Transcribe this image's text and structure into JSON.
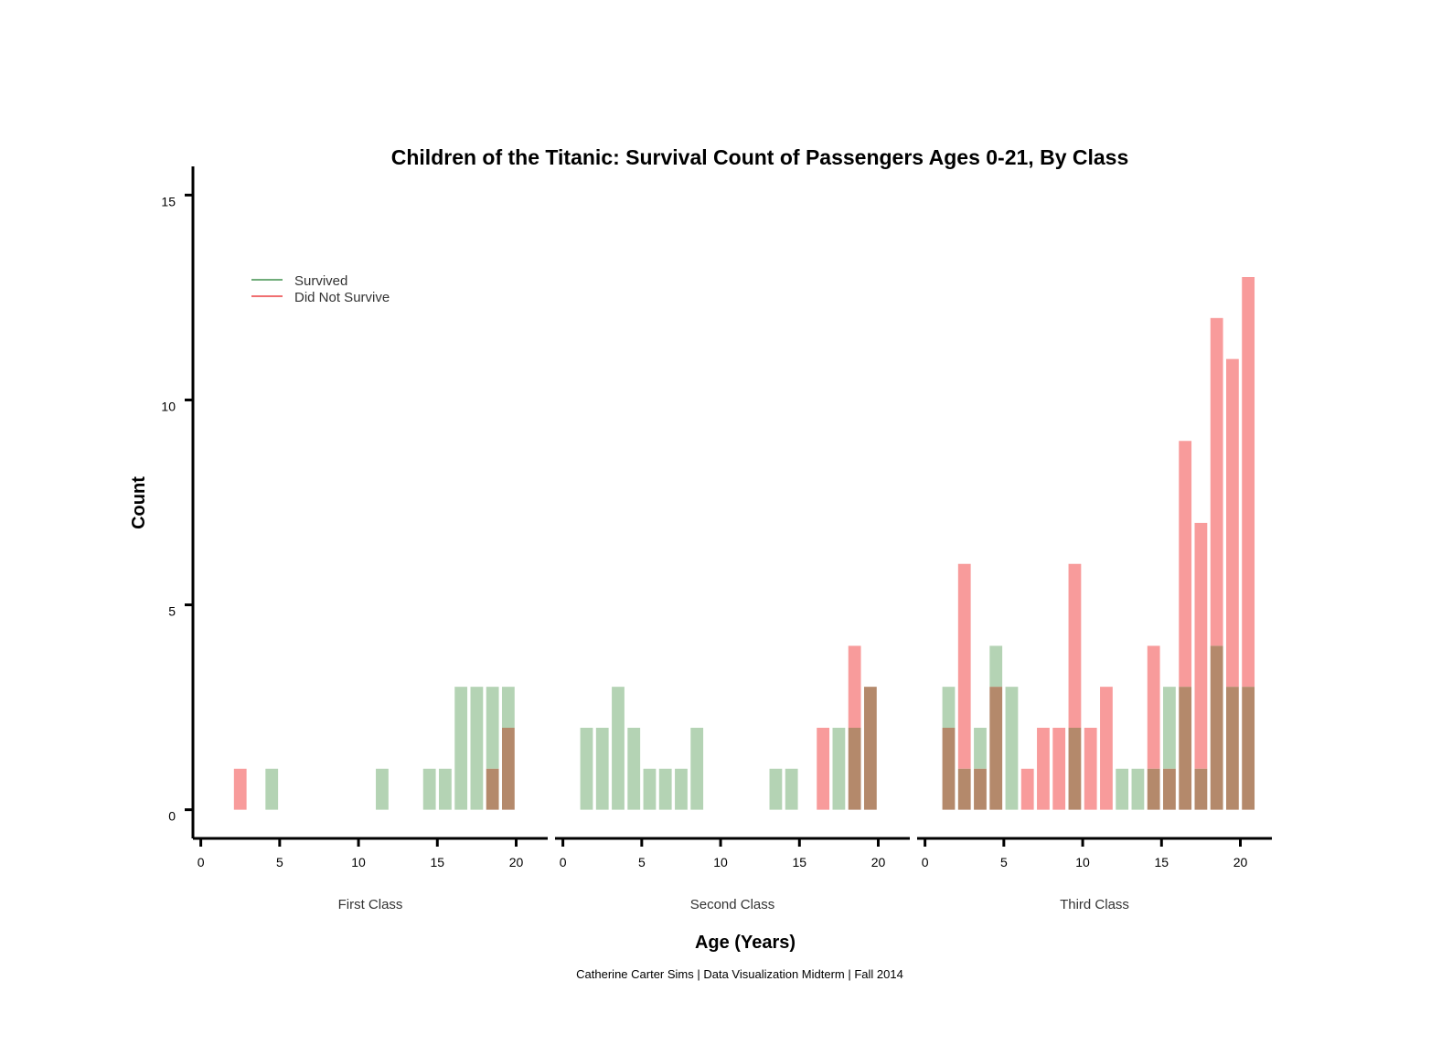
{
  "chart_data": {
    "type": "bar",
    "title": "Children of the Titanic: Survival Count of Passengers Ages 0-21, By Class",
    "xlabel": "Age (Years)",
    "ylabel": "Count",
    "caption": "Catherine Carter Sims | Data Visualization Midterm | Fall 2014",
    "ylim": [
      -0.7,
      15.7
    ],
    "yticks": [
      0,
      5,
      10,
      15
    ],
    "xlim": [
      -0.5,
      22
    ],
    "xticks": [
      0,
      5,
      10,
      15,
      20
    ],
    "legend": {
      "position": "top-left",
      "entries": [
        {
          "label": "Survived",
          "color": "#1a7a2a"
        },
        {
          "label": "Did Not Survive",
          "color": "#e8191c"
        }
      ]
    },
    "colors": {
      "survived_fill": "#b4d3b4",
      "died_fill": "#f89b9b",
      "overlap_fill": "#b4896b",
      "axis": "#000000"
    },
    "panels": [
      {
        "label": "First Class",
        "survived": [
          [
            4.5,
            1
          ],
          [
            11.5,
            1
          ],
          [
            14.5,
            1
          ],
          [
            15.5,
            1
          ],
          [
            16.5,
            3
          ],
          [
            17.5,
            3
          ],
          [
            18.5,
            3
          ],
          [
            19.5,
            3
          ]
        ],
        "died": [
          [
            2.5,
            1
          ],
          [
            18.5,
            1
          ],
          [
            19.5,
            2
          ]
        ]
      },
      {
        "label": "Second Class",
        "survived": [
          [
            1.5,
            2
          ],
          [
            2.5,
            2
          ],
          [
            3.5,
            3
          ],
          [
            4.5,
            2
          ],
          [
            5.5,
            1
          ],
          [
            6.5,
            1
          ],
          [
            7.5,
            1
          ],
          [
            8.5,
            2
          ],
          [
            13.5,
            1
          ],
          [
            14.5,
            1
          ],
          [
            17.5,
            2
          ],
          [
            18.5,
            2
          ],
          [
            19.5,
            3
          ]
        ],
        "died": [
          [
            16.5,
            2
          ],
          [
            18.5,
            4
          ],
          [
            19.5,
            3
          ]
        ]
      },
      {
        "label": "Third Class",
        "survived": [
          [
            1.5,
            3
          ],
          [
            2.5,
            1
          ],
          [
            3.5,
            2
          ],
          [
            4.5,
            4
          ],
          [
            5.5,
            3
          ],
          [
            9.5,
            2
          ],
          [
            12.5,
            1
          ],
          [
            13.5,
            1
          ],
          [
            14.5,
            1
          ],
          [
            15.5,
            3
          ],
          [
            16.5,
            3
          ],
          [
            17.5,
            1
          ],
          [
            18.5,
            4
          ],
          [
            19.5,
            3
          ],
          [
            20.5,
            3
          ]
        ],
        "died": [
          [
            1.5,
            2
          ],
          [
            2.5,
            6
          ],
          [
            3.5,
            1
          ],
          [
            4.5,
            3
          ],
          [
            6.5,
            1
          ],
          [
            7.5,
            2
          ],
          [
            8.5,
            2
          ],
          [
            9.5,
            6
          ],
          [
            10.5,
            2
          ],
          [
            11.5,
            3
          ],
          [
            14.5,
            4
          ],
          [
            15.5,
            1
          ],
          [
            16.5,
            9
          ],
          [
            17.5,
            7
          ],
          [
            18.5,
            12
          ],
          [
            19.5,
            11
          ],
          [
            20.5,
            13
          ]
        ]
      }
    ]
  }
}
